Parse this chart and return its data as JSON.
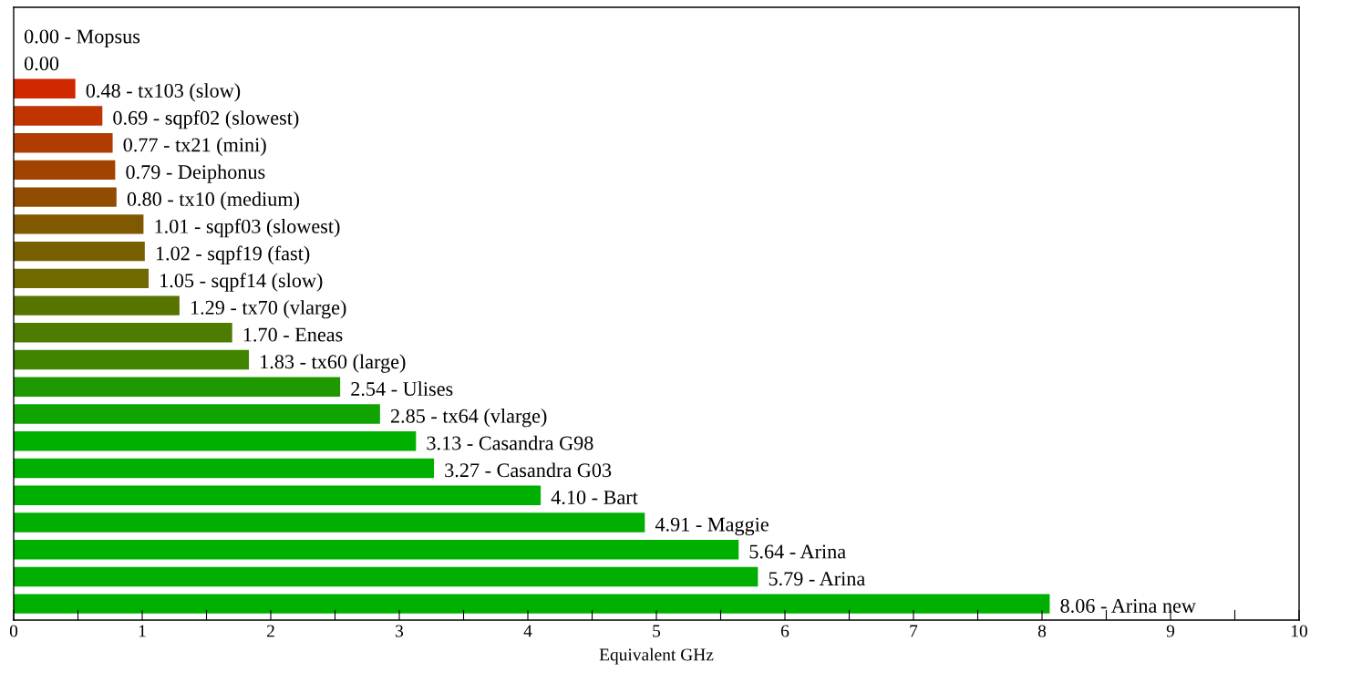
{
  "chart_data": {
    "type": "bar",
    "orientation": "horizontal",
    "xlabel": "Equivalent GHz",
    "categories": [
      null,
      null,
      null,
      null,
      null,
      null,
      null,
      null,
      null,
      null,
      null,
      null,
      null,
      null,
      null,
      null,
      null,
      null,
      null,
      null,
      null,
      null
    ],
    "values": [
      0.0,
      0.0,
      0.48,
      0.69,
      0.77,
      0.79,
      0.8,
      1.01,
      1.02,
      1.05,
      1.29,
      1.7,
      1.83,
      2.54,
      2.85,
      3.13,
      3.27,
      4.1,
      4.91,
      5.64,
      5.79,
      8.06
    ],
    "value_labels": [
      "0.00 - Mopsus",
      "0.00",
      "0.48 - tx103 (slow)",
      "0.69 - sqpf02 (slowest)",
      "0.77 - tx21 (mini)",
      "0.79 - Deiphonus",
      "0.80 - tx10 (medium)",
      "1.01 - sqpf03 (slowest)",
      "1.02 - sqpf19 (fast)",
      "1.05 - sqpf14 (slow)",
      "1.29 - tx70 (vlarge)",
      "1.70 - Eneas",
      "1.83 - tx60 (large)",
      "2.54 - Ulises",
      "2.85 - tx64 (vlarge)",
      "3.13 - Casandra G98",
      "3.27 - Casandra G03",
      "4.10 - Bart",
      "4.91 - Maggie",
      "5.64 - Arina",
      "5.79 - Arina",
      "8.06 - Arina new"
    ],
    "colors": [
      "#e02000",
      "#e02000",
      "#d02800",
      "#c03400",
      "#b03c00",
      "#a04400",
      "#904c00",
      "#805800",
      "#786000",
      "#706800",
      "#587400",
      "#4c7c00",
      "#408400",
      "#209800",
      "#10a400",
      "#00b000",
      "#00b000",
      "#00b000",
      "#00b000",
      "#00b000",
      "#00b000",
      "#00b000"
    ],
    "xlim": [
      0,
      10
    ],
    "xticks": [
      0,
      {
        "value": 0.5,
        "label": null
      },
      1,
      {
        "value": 1.5,
        "label": null
      },
      2,
      {
        "value": 2.5,
        "label": null
      },
      3,
      {
        "value": 3.5,
        "label": null
      },
      4,
      {
        "value": 4.5,
        "label": null
      },
      5,
      {
        "value": 5.5,
        "label": null
      },
      6,
      {
        "value": 6.5,
        "label": null
      },
      7,
      {
        "value": 7.5,
        "label": null
      },
      8,
      {
        "value": 8.5,
        "label": null
      },
      9,
      {
        "value": 9.5,
        "label": null
      },
      10
    ],
    "tick_labels": "x",
    "grid": false,
    "legend": false
  }
}
